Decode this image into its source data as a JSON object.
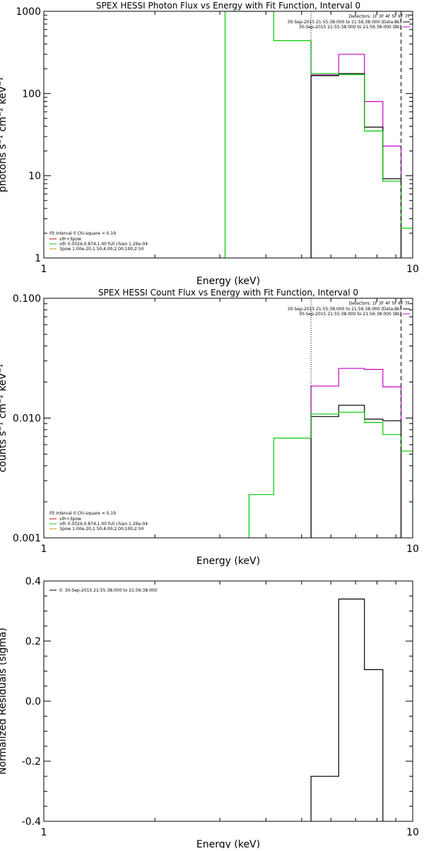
{
  "chart_data": [
    {
      "id": "photon",
      "type": "line",
      "title": "SPEX HESSI Photon Flux vs Energy with Fit Function, Interval 0",
      "xlabel": "Energy (keV)",
      "ylabel": "photons s⁻¹ cm⁻² keV⁻¹",
      "xscale": "log",
      "yscale": "log",
      "xlim": [
        1,
        10
      ],
      "ylim": [
        1,
        1000
      ],
      "xticks": [
        1,
        10
      ],
      "xtick_labels": [
        "1",
        "10"
      ],
      "yticks": [
        1,
        10,
        100,
        1000
      ],
      "ytick_labels": [
        "1",
        "10",
        "100",
        "1000"
      ],
      "detectors_text": "Detectors: 1F 3F 4F 5F 6F 7F",
      "legend_right": [
        {
          "text": "30-Sep-2015 21:55:38.000 to 21:56:38.000 (Data-Bk)",
          "color": "#000000"
        },
        {
          "text": "30-Sep-2015 21:55:38.000 to 21:56:38.000 (Bk)",
          "color": "#cc00cc"
        }
      ],
      "fit_text": "Fit Interval 0   Chi-square = 0.19",
      "legend_left": [
        {
          "text": "vth+3pow",
          "color": "#cc0000"
        },
        {
          "text": "vth 0.0324,0.874,1.00  full chian 1.26e-04",
          "color": "#00cc00"
        },
        {
          "text": "3pow 1.00e-20,1.50,4.00,2.00,100,2.50",
          "color": "#cc9900"
        }
      ],
      "vlines": [
        {
          "x": 5.3,
          "style": "dotted",
          "color": "#000000"
        },
        {
          "x": 9.3,
          "style": "dashed",
          "color": "#000000"
        }
      ],
      "series": [
        {
          "color": "#cc00cc",
          "edges": [
            5.3,
            6.3,
            7.4,
            8.3,
            9.3
          ],
          "values": [
            168,
            300,
            80,
            23
          ]
        },
        {
          "color": "#000000",
          "edges": [
            5.3,
            6.3,
            7.4,
            8.3,
            9.3
          ],
          "values": [
            165,
            175,
            39,
            9.2
          ]
        },
        {
          "color": "#00cc00",
          "edges": [
            3.1,
            4.2,
            5.3,
            6.3,
            7.4,
            8.3,
            9.3,
            10
          ],
          "values": [
            1000,
            440,
            175,
            170,
            35,
            8.6,
            2.3
          ]
        }
      ]
    },
    {
      "id": "count",
      "type": "line",
      "title": "SPEX HESSI Count Flux vs Energy with Fit Function, Interval 0",
      "xlabel": "Energy (keV)",
      "ylabel": "counts s⁻¹ cm⁻² keV⁻¹",
      "xscale": "log",
      "yscale": "log",
      "xlim": [
        1,
        10
      ],
      "ylim": [
        0.001,
        0.1
      ],
      "xticks": [
        1,
        10
      ],
      "xtick_labels": [
        "1",
        "10"
      ],
      "yticks": [
        0.001,
        0.01,
        0.1
      ],
      "ytick_labels": [
        "0.001",
        "0.010",
        "0.100"
      ],
      "detectors_text": "Detectors: 1F 3F 4F 5F 6F 7F",
      "legend_right": [
        {
          "text": "30-Sep-2015 21:55:38.000 to 21:56:38.000 (Data-Bk)",
          "color": "#000000"
        },
        {
          "text": "30-Sep-2015 21:55:38.000 to 21:56:38.000 (Bk)",
          "color": "#cc00cc"
        }
      ],
      "fit_text": "Fit Interval 0   Chi-square = 0.19",
      "legend_left": [
        {
          "text": "vth+3pow",
          "color": "#cc0000"
        },
        {
          "text": "vth 0.0324,0.874,1.00  full chian 1.26e-04",
          "color": "#00cc00"
        },
        {
          "text": "3pow 1.00e-20,1.50,4.00,2.00,100,2.50",
          "color": "#cc9900"
        }
      ],
      "vlines": [
        {
          "x": 5.3,
          "style": "dotted",
          "color": "#000000"
        },
        {
          "x": 9.3,
          "style": "dashed",
          "color": "#000000"
        }
      ],
      "series": [
        {
          "color": "#cc00cc",
          "edges": [
            5.3,
            6.3,
            7.4,
            8.3,
            9.3
          ],
          "values": [
            0.0185,
            0.026,
            0.0255,
            0.0182
          ]
        },
        {
          "color": "#000000",
          "edges": [
            5.3,
            6.3,
            7.4,
            8.3,
            9.3
          ],
          "values": [
            0.0103,
            0.0128,
            0.0098,
            0.0095
          ]
        },
        {
          "color": "#00cc00",
          "edges": [
            3.6,
            4.2,
            5.3,
            6.3,
            7.4,
            8.3,
            9.3,
            10
          ],
          "values": [
            0.0023,
            0.0068,
            0.0108,
            0.0112,
            0.0092,
            0.0073,
            0.0053
          ]
        }
      ]
    },
    {
      "id": "resid",
      "type": "line",
      "title": "",
      "xlabel": "Energy (keV)",
      "ylabel": "Normalized Residuals (sigma)",
      "xscale": "log",
      "yscale": "linear",
      "xlim": [
        1,
        10
      ],
      "ylim": [
        -0.4,
        0.4
      ],
      "xticks": [
        1,
        10
      ],
      "xtick_labels": [
        "1",
        "10"
      ],
      "yticks": [
        -0.4,
        -0.2,
        0.0,
        0.2,
        0.4
      ],
      "ytick_labels": [
        "-0.4",
        "-0.2",
        "0.0",
        "0.2",
        "0.4"
      ],
      "legend_left": [
        {
          "text": "0. 30-Sep-2015 21:55:38.000 to 21:56:38.000",
          "color": "#000000"
        }
      ],
      "vlines": [],
      "series": [
        {
          "color": "#000000",
          "edges": [
            5.3,
            6.3,
            7.4,
            8.3,
            9.3
          ],
          "values": [
            -0.25,
            0.34,
            0.105,
            -0.41
          ]
        }
      ]
    }
  ]
}
